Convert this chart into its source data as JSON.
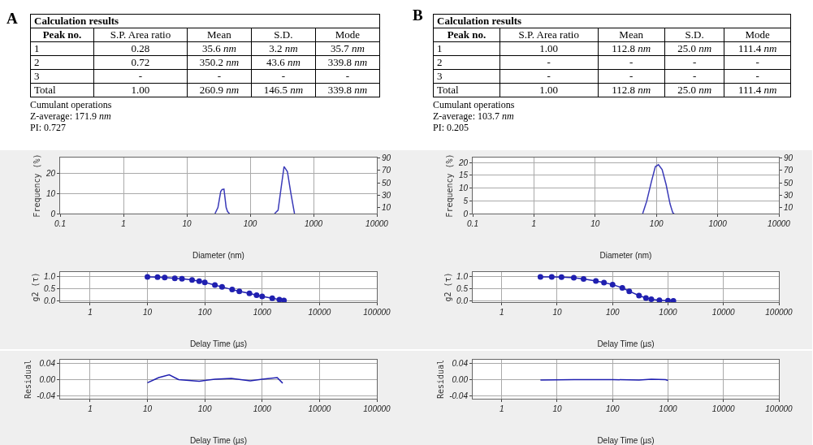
{
  "chart_data": [
    {
      "type": "other",
      "title": "Calculation results",
      "categories": [
        "Peak no.",
        "S.P. Area ratio",
        "Mean",
        "S.D.",
        "Mode"
      ],
      "y_categories": [
        "1",
        "2",
        "3",
        "Total"
      ],
      "cell_labels": [
        [
          "0.28",
          "35.6 nm",
          "3.2 nm",
          "35.7 nm"
        ],
        [
          "0.72",
          "350.2 nm",
          "43.6 nm",
          "339.8 nm"
        ],
        [
          "-",
          "-",
          "-",
          "-"
        ],
        [
          "1.00",
          "260.9 nm",
          "146.5 nm",
          "339.8 nm"
        ]
      ],
      "annotations": [
        "A",
        "Cumulant operations",
        "Z-average: 171.9 nm",
        "PI: 0.727"
      ]
    },
    {
      "type": "line",
      "xlabel": "Diameter (nm)",
      "ylabel": "Frequency (%)",
      "log": "x",
      "grid": true,
      "xlim": [
        0.1,
        10000
      ],
      "xticks": [
        0.1,
        1,
        10,
        100,
        1000,
        10000
      ],
      "ylim": [
        0,
        28
      ],
      "yticks": [
        0,
        10,
        20
      ],
      "y2lim": [
        0,
        91
      ],
      "y2ticks": [
        10,
        30,
        50,
        70,
        90
      ],
      "x": [
        27.9,
        31,
        34.3,
        36,
        38.6,
        41.8,
        44,
        47.1,
        100,
        243,
        276,
        311,
        343,
        387,
        440,
        501
      ],
      "series": [
        {
          "color": "#3a3ab8",
          "values": [
            0,
            3,
            11,
            12,
            12.2,
            3,
            1,
            0,
            null,
            0,
            1.7,
            13.8,
            23.5,
            21,
            10,
            0
          ]
        }
      ]
    },
    {
      "type": "line",
      "xlabel": "Delay Time (µs)",
      "ylabel": "g2 (τ)",
      "log": "x",
      "grid": true,
      "marker": "circle",
      "xlim": [
        0.3,
        100000
      ],
      "xticks": [
        1,
        10,
        100,
        1000,
        10000,
        100000
      ],
      "ylim": [
        -0.05,
        1.2
      ],
      "yticks": [
        {
          "value": 0,
          "label": "0.0"
        },
        {
          "value": 0.5,
          "label": "0.5"
        },
        {
          "value": 1,
          "label": "1.0"
        }
      ],
      "x": [
        10,
        15,
        20,
        30,
        40,
        60,
        80,
        100,
        150,
        200,
        300,
        400,
        600,
        800,
        1000,
        1500,
        2000,
        2400
      ],
      "series": [
        {
          "color": "#2020b0",
          "values": [
            1.0,
            0.99,
            0.97,
            0.94,
            0.92,
            0.87,
            0.82,
            0.77,
            0.66,
            0.58,
            0.47,
            0.4,
            0.31,
            0.24,
            0.19,
            0.11,
            0.05,
            0.02
          ]
        }
      ]
    },
    {
      "type": "line",
      "xlabel": "Delay Time (µs)",
      "ylabel": "Residual",
      "log": "x",
      "grid": true,
      "xlim": [
        0.3,
        100000
      ],
      "xticks": [
        1,
        10,
        100,
        1000,
        10000,
        100000
      ],
      "ylim": [
        -0.048,
        0.05
      ],
      "yticks": [
        {
          "value": -0.04,
          "label": "-0.04"
        },
        {
          "value": 0,
          "label": "0.00"
        },
        {
          "value": 0.04,
          "label": "0.04"
        }
      ],
      "x": [
        10,
        15.7,
        24,
        35,
        80,
        150,
        290,
        620,
        1000,
        1830,
        2280
      ],
      "series": [
        {
          "color": "#2020b0",
          "values": [
            -0.008,
            0.005,
            0.012,
            0,
            -0.004,
            0.001,
            0.003,
            -0.003,
            0.001,
            0.005,
            -0.009
          ]
        }
      ]
    },
    {
      "type": "other",
      "title": "Calculation results",
      "categories": [
        "Peak no.",
        "S.P. Area ratio",
        "Mean",
        "S.D.",
        "Mode"
      ],
      "y_categories": [
        "1",
        "2",
        "3",
        "Total"
      ],
      "cell_labels": [
        [
          "1.00",
          "112.8 nm",
          "25.0 nm",
          "111.4 nm"
        ],
        [
          "-",
          "-",
          "-",
          "-"
        ],
        [
          "-",
          "-",
          "-",
          "-"
        ],
        [
          "1.00",
          "112.8 nm",
          "25.0 nm",
          "111.4 nm"
        ]
      ],
      "annotations": [
        "B",
        "Cumulant operations",
        "Z-average: 103.7 nm",
        "PI: 0.205"
      ]
    },
    {
      "type": "line",
      "xlabel": "Diameter (nm)",
      "ylabel": "Frequency (%)",
      "log": "x",
      "grid": true,
      "xlim": [
        0.1,
        10000
      ],
      "xticks": [
        0.1,
        1,
        10,
        100,
        1000,
        10000
      ],
      "ylim": [
        0,
        22
      ],
      "yticks": [
        0,
        5,
        10,
        15,
        20
      ],
      "y2lim": [
        0,
        91
      ],
      "y2ticks": [
        10,
        30,
        50,
        70,
        90
      ],
      "x": [
        59.7,
        69.5,
        82.6,
        96,
        108,
        124,
        144,
        167,
        185,
        195
      ],
      "series": [
        {
          "color": "#3a3ab8",
          "values": [
            0,
            4.9,
            12.4,
            18.4,
            19.2,
            17.3,
            11.4,
            3.8,
            0.3,
            0
          ]
        }
      ]
    },
    {
      "type": "line",
      "xlabel": "Delay Time (µs)",
      "ylabel": "g2 (τ)",
      "log": "x",
      "grid": true,
      "marker": "circle",
      "xlim": [
        0.3,
        100000
      ],
      "xticks": [
        1,
        10,
        100,
        1000,
        10000,
        100000
      ],
      "ylim": [
        -0.05,
        1.2
      ],
      "yticks": [
        {
          "value": 0,
          "label": "0.0"
        },
        {
          "value": 0.5,
          "label": "0.5"
        },
        {
          "value": 1,
          "label": "1.0"
        }
      ],
      "x": [
        5,
        8,
        12,
        20,
        30,
        50,
        70,
        100,
        150,
        200,
        300,
        400,
        500,
        700,
        1000,
        1250
      ],
      "series": [
        {
          "color": "#2020b0",
          "values": [
            1.0,
            1.0,
            0.99,
            0.96,
            0.91,
            0.83,
            0.76,
            0.68,
            0.54,
            0.4,
            0.22,
            0.12,
            0.07,
            0.03,
            0.01,
            0
          ]
        }
      ]
    },
    {
      "type": "line",
      "xlabel": "Delay Time (µs)",
      "ylabel": "Residual",
      "log": "x",
      "grid": true,
      "xlim": [
        0.3,
        100000
      ],
      "xticks": [
        1,
        10,
        100,
        1000,
        10000,
        100000
      ],
      "ylim": [
        -0.048,
        0.05
      ],
      "yticks": [
        {
          "value": -0.04,
          "label": "-0.04"
        },
        {
          "value": 0,
          "label": "0.00"
        },
        {
          "value": 0.04,
          "label": "0.04"
        }
      ],
      "x": [
        5,
        20,
        100,
        300,
        500,
        900,
        1000
      ],
      "series": [
        {
          "color": "#2020b0",
          "values": [
            -0.001,
            0,
            0,
            -0.001,
            0.001,
            0,
            -0.002
          ]
        }
      ]
    }
  ]
}
